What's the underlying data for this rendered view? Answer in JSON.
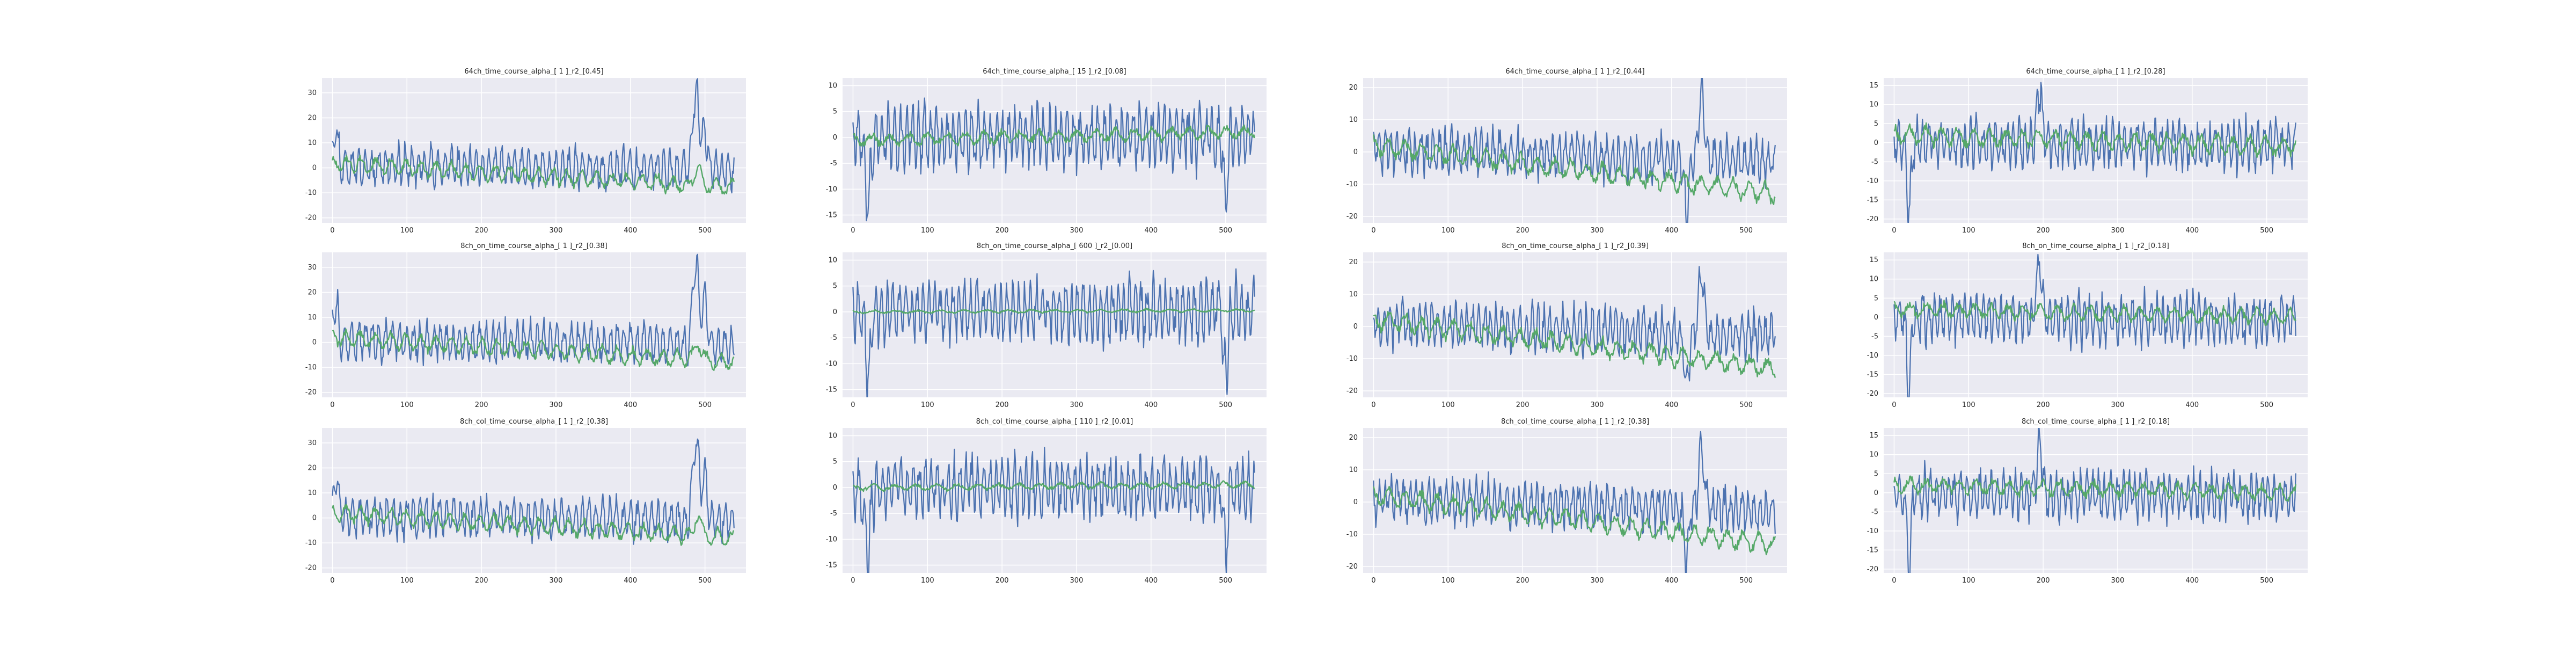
{
  "figure": {
    "background": "#ffffff",
    "plot_background": "#eaeaf2",
    "grid_color": "#ffffff",
    "colors": {
      "observed": "#4c72b0",
      "predicted": "#55a868"
    }
  },
  "chart_data": [
    {
      "type": "line",
      "row": 0,
      "col": 0,
      "title": "64ch_time_course_alpha_[ 1 ]_r2_[0.45]",
      "xlim": [
        -14,
        555
      ],
      "ylim": [
        -22,
        36
      ],
      "xticks": [
        0,
        100,
        200,
        300,
        400,
        500
      ],
      "yticks": [
        -20,
        -10,
        0,
        10,
        20,
        30
      ],
      "grid": true,
      "series": [
        {
          "color": "#4c72b0",
          "seed": 11,
          "amp": 8,
          "noise": 3,
          "period": 9,
          "drift": [
            1,
            -1
          ],
          "peaks": [
            [
              488,
              32,
              6
            ],
            [
              500,
              18,
              4
            ],
            [
              4,
              14,
              5
            ]
          ]
        },
        {
          "color": "#55a868",
          "seed": 12,
          "amp": 3.5,
          "noise": 1.2,
          "period": 20,
          "drift": [
            2,
            -8
          ],
          "peaks": [
            [
              490,
              8,
              6
            ]
          ]
        }
      ]
    },
    {
      "type": "line",
      "row": 0,
      "col": 1,
      "title": "64ch_time_course_alpha_[ 15 ]_r2_[0.08]",
      "xlim": [
        -14,
        555
      ],
      "ylim": [
        -16.5,
        11.5
      ],
      "xticks": [
        0,
        100,
        200,
        300,
        400,
        500
      ],
      "yticks": [
        -15,
        -10,
        -5,
        0,
        5,
        10
      ],
      "grid": true,
      "series": [
        {
          "color": "#4c72b0",
          "seed": 21,
          "amp": 6,
          "noise": 2.5,
          "period": 8,
          "drift": [
            0,
            0
          ],
          "peaks": [
            [
              20,
              -14,
              4
            ],
            [
              500,
              -12,
              4
            ]
          ]
        },
        {
          "color": "#55a868",
          "seed": 22,
          "amp": 1.2,
          "noise": 0.6,
          "period": 25,
          "drift": [
            -0.5,
            1
          ],
          "peaks": []
        }
      ]
    },
    {
      "type": "line",
      "row": 0,
      "col": 2,
      "title": "64ch_time_course_alpha_[ 1 ]_r2_[0.44]",
      "xlim": [
        -14,
        555
      ],
      "ylim": [
        -22,
        23
      ],
      "xticks": [
        0,
        100,
        200,
        300,
        400,
        500
      ],
      "yticks": [
        -20,
        -10,
        0,
        10,
        20
      ],
      "grid": true,
      "series": [
        {
          "color": "#4c72b0",
          "seed": 31,
          "amp": 7,
          "noise": 3,
          "period": 8,
          "drift": [
            1,
            -3
          ],
          "peaks": [
            [
              440,
              20,
              5
            ],
            [
              420,
              -16,
              4
            ]
          ]
        },
        {
          "color": "#55a868",
          "seed": 32,
          "amp": 3,
          "noise": 1.2,
          "period": 22,
          "drift": [
            2,
            -13
          ],
          "peaks": []
        }
      ]
    },
    {
      "type": "line",
      "row": 0,
      "col": 3,
      "title": "64ch_time_course_alpha_[ 1 ]_r2_[0.28]",
      "xlim": [
        -14,
        555
      ],
      "ylim": [
        -21,
        17
      ],
      "xticks": [
        0,
        100,
        200,
        300,
        400,
        500
      ],
      "yticks": [
        -20,
        -15,
        -10,
        -5,
        0,
        5,
        10,
        15
      ],
      "grid": true,
      "series": [
        {
          "color": "#4c72b0",
          "seed": 41,
          "amp": 6.5,
          "noise": 2.5,
          "period": 8,
          "drift": [
            0,
            -1
          ],
          "peaks": [
            [
              195,
              14,
              5
            ],
            [
              20,
              -18,
              4
            ]
          ]
        },
        {
          "color": "#55a868",
          "seed": 42,
          "amp": 2.5,
          "noise": 1,
          "period": 22,
          "drift": [
            2,
            -1
          ],
          "peaks": []
        }
      ]
    },
    {
      "type": "line",
      "row": 1,
      "col": 0,
      "title": "8ch_on_time_course_alpha_[ 1 ]_r2_[0.38]",
      "xlim": [
        -14,
        555
      ],
      "ylim": [
        -22,
        36
      ],
      "xticks": [
        0,
        100,
        200,
        300,
        400,
        500
      ],
      "yticks": [
        -20,
        -10,
        0,
        10,
        20,
        30
      ],
      "grid": true,
      "series": [
        {
          "color": "#4c72b0",
          "seed": 51,
          "amp": 8,
          "noise": 3,
          "period": 9,
          "drift": [
            1,
            -1
          ],
          "peaks": [
            [
              488,
              32,
              6
            ],
            [
              500,
              18,
              4
            ],
            [
              4,
              14,
              5
            ]
          ]
        },
        {
          "color": "#55a868",
          "seed": 52,
          "amp": 3.5,
          "noise": 1.2,
          "period": 20,
          "drift": [
            2,
            -8
          ],
          "peaks": [
            [
              490,
              8,
              6
            ]
          ]
        }
      ]
    },
    {
      "type": "line",
      "row": 1,
      "col": 1,
      "title": "8ch_on_time_course_alpha_[ 600 ]_r2_[0.00]",
      "xlim": [
        -14,
        555
      ],
      "ylim": [
        -16.5,
        11.5
      ],
      "xticks": [
        0,
        100,
        200,
        300,
        400,
        500
      ],
      "yticks": [
        -15,
        -10,
        -5,
        0,
        5,
        10
      ],
      "grid": true,
      "series": [
        {
          "color": "#4c72b0",
          "seed": 61,
          "amp": 6,
          "noise": 2.5,
          "period": 8,
          "drift": [
            0,
            0
          ],
          "peaks": [
            [
              20,
              -14,
              4
            ],
            [
              500,
              -12,
              4
            ]
          ]
        },
        {
          "color": "#55a868",
          "seed": 62,
          "amp": 0.3,
          "noise": 0.15,
          "period": 30,
          "drift": [
            0,
            0.3
          ],
          "peaks": []
        }
      ]
    },
    {
      "type": "line",
      "row": 1,
      "col": 2,
      "title": "8ch_on_time_course_alpha_[ 1 ]_r2_[0.39]",
      "xlim": [
        -14,
        555
      ],
      "ylim": [
        -22,
        23
      ],
      "xticks": [
        0,
        100,
        200,
        300,
        400,
        500
      ],
      "yticks": [
        -20,
        -10,
        0,
        10,
        20
      ],
      "grid": true,
      "series": [
        {
          "color": "#4c72b0",
          "seed": 71,
          "amp": 7,
          "noise": 3,
          "period": 8,
          "drift": [
            1,
            -3
          ],
          "peaks": [
            [
              440,
              20,
              5
            ],
            [
              420,
              -16,
              4
            ]
          ]
        },
        {
          "color": "#55a868",
          "seed": 72,
          "amp": 3,
          "noise": 1.2,
          "period": 22,
          "drift": [
            2,
            -13
          ],
          "peaks": []
        }
      ]
    },
    {
      "type": "line",
      "row": 1,
      "col": 3,
      "title": "8ch_on_time_course_alpha_[ 1 ]_r2_[0.18]",
      "xlim": [
        -14,
        555
      ],
      "ylim": [
        -21,
        17
      ],
      "xticks": [
        0,
        100,
        200,
        300,
        400,
        500
      ],
      "yticks": [
        -20,
        -15,
        -10,
        -5,
        0,
        5,
        10,
        15
      ],
      "grid": true,
      "series": [
        {
          "color": "#4c72b0",
          "seed": 81,
          "amp": 6.5,
          "noise": 2.5,
          "period": 8,
          "drift": [
            0,
            -1
          ],
          "peaks": [
            [
              195,
              14,
              5
            ],
            [
              20,
              -18,
              4
            ]
          ]
        },
        {
          "color": "#55a868",
          "seed": 82,
          "amp": 2,
          "noise": 0.9,
          "period": 22,
          "drift": [
            2,
            0
          ],
          "peaks": []
        }
      ]
    },
    {
      "type": "line",
      "row": 2,
      "col": 0,
      "title": "8ch_col_time_course_alpha_[ 1 ]_r2_[0.38]",
      "xlim": [
        -14,
        555
      ],
      "ylim": [
        -22,
        36
      ],
      "xticks": [
        0,
        100,
        200,
        300,
        400,
        500
      ],
      "yticks": [
        -20,
        -10,
        0,
        10,
        20,
        30
      ],
      "grid": true,
      "series": [
        {
          "color": "#4c72b0",
          "seed": 91,
          "amp": 8,
          "noise": 3,
          "period": 9,
          "drift": [
            1,
            -1
          ],
          "peaks": [
            [
              488,
              32,
              6
            ],
            [
              500,
              18,
              4
            ],
            [
              4,
              14,
              5
            ]
          ]
        },
        {
          "color": "#55a868",
          "seed": 92,
          "amp": 3.5,
          "noise": 1.2,
          "period": 20,
          "drift": [
            2,
            -8
          ],
          "peaks": [
            [
              490,
              8,
              6
            ]
          ]
        }
      ]
    },
    {
      "type": "line",
      "row": 2,
      "col": 1,
      "title": "8ch_col_time_course_alpha_[ 110 ]_r2_[0.01]",
      "xlim": [
        -14,
        555
      ],
      "ylim": [
        -16.5,
        11.5
      ],
      "xticks": [
        0,
        100,
        200,
        300,
        400,
        500
      ],
      "yticks": [
        -15,
        -10,
        -5,
        0,
        5,
        10
      ],
      "grid": true,
      "series": [
        {
          "color": "#4c72b0",
          "seed": 101,
          "amp": 6,
          "noise": 2.5,
          "period": 8,
          "drift": [
            0,
            0
          ],
          "peaks": [
            [
              20,
              -14,
              4
            ],
            [
              500,
              -12,
              4
            ]
          ]
        },
        {
          "color": "#55a868",
          "seed": 102,
          "amp": 0.6,
          "noise": 0.3,
          "period": 28,
          "drift": [
            0,
            0.5
          ],
          "peaks": []
        }
      ]
    },
    {
      "type": "line",
      "row": 2,
      "col": 2,
      "title": "8ch_col_time_course_alpha_[ 1 ]_r2_[0.38]",
      "xlim": [
        -14,
        555
      ],
      "ylim": [
        -22,
        23
      ],
      "xticks": [
        0,
        100,
        200,
        300,
        400,
        500
      ],
      "yticks": [
        -20,
        -10,
        0,
        10,
        20
      ],
      "grid": true,
      "series": [
        {
          "color": "#4c72b0",
          "seed": 111,
          "amp": 7,
          "noise": 3,
          "period": 8,
          "drift": [
            1,
            -3
          ],
          "peaks": [
            [
              440,
              20,
              5
            ],
            [
              420,
              -16,
              4
            ]
          ]
        },
        {
          "color": "#55a868",
          "seed": 112,
          "amp": 3,
          "noise": 1.2,
          "period": 22,
          "drift": [
            2,
            -13
          ],
          "peaks": []
        }
      ]
    },
    {
      "type": "line",
      "row": 2,
      "col": 3,
      "title": "8ch_col_time_course_alpha_[ 1 ]_r2_[0.18]",
      "xlim": [
        -14,
        555
      ],
      "ylim": [
        -21,
        17
      ],
      "xticks": [
        0,
        100,
        200,
        300,
        400,
        500
      ],
      "yticks": [
        -20,
        -15,
        -10,
        -5,
        0,
        5,
        10,
        15
      ],
      "grid": true,
      "series": [
        {
          "color": "#4c72b0",
          "seed": 121,
          "amp": 6.5,
          "noise": 2.5,
          "period": 8,
          "drift": [
            0,
            -1
          ],
          "peaks": [
            [
              195,
              14,
              5
            ],
            [
              20,
              -18,
              4
            ]
          ]
        },
        {
          "color": "#55a868",
          "seed": 122,
          "amp": 2,
          "noise": 0.9,
          "period": 22,
          "drift": [
            2,
            0
          ],
          "peaks": []
        }
      ]
    }
  ]
}
